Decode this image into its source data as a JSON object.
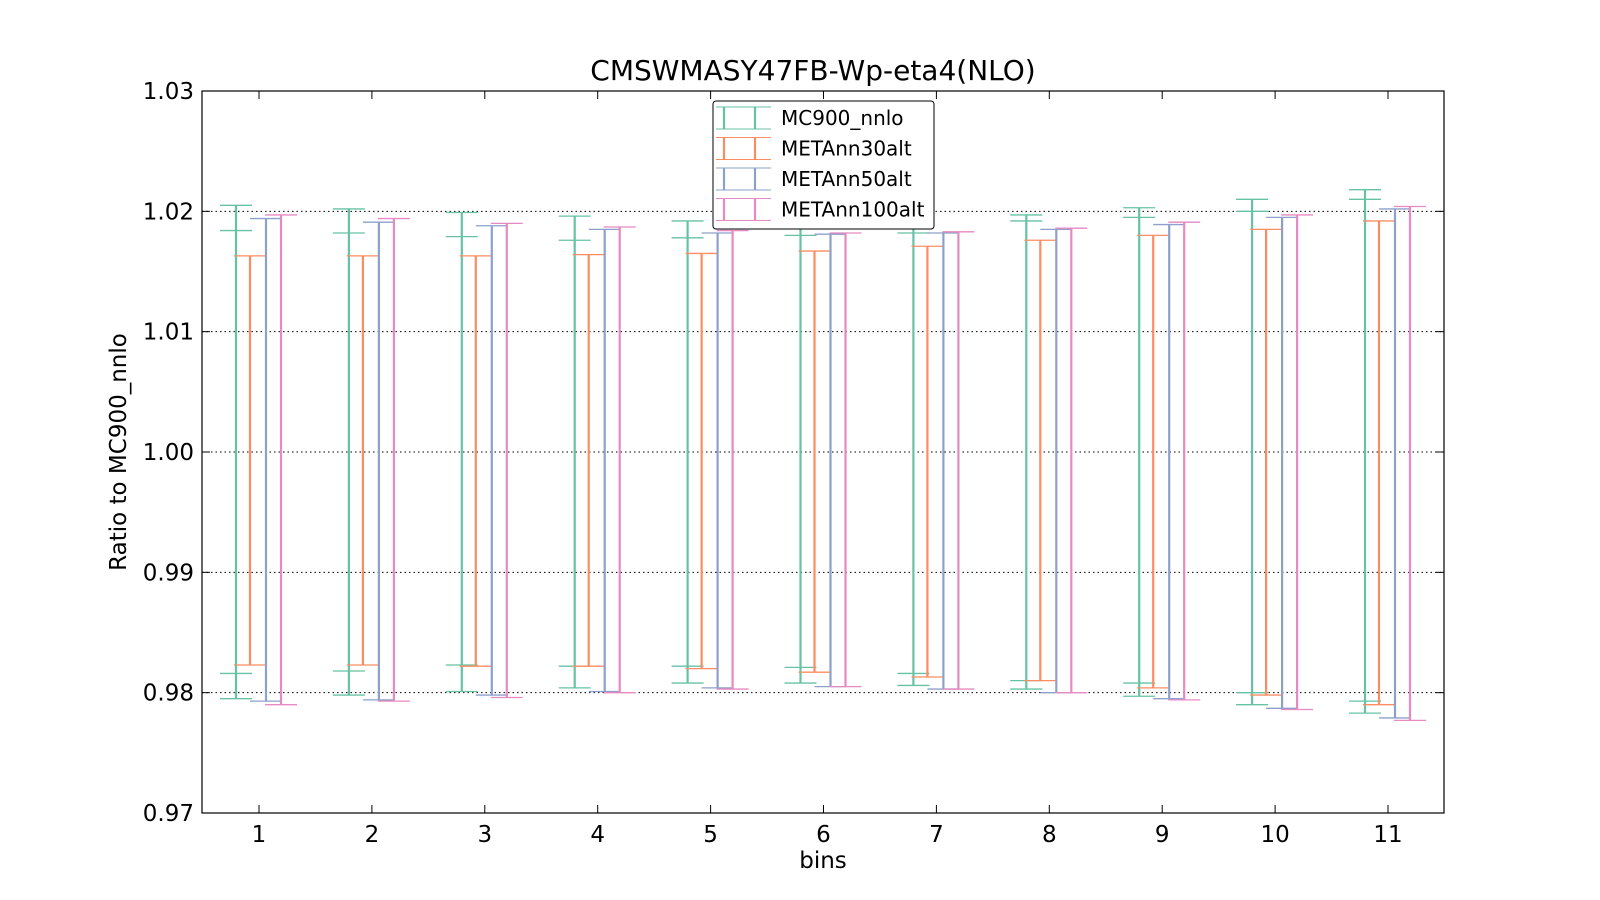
{
  "chart_data": {
    "type": "errorbar",
    "title": "CMSWMASY47FB-Wp-eta4(NLO)",
    "xlabel": "bins",
    "ylabel": "Ratio to MC900_nnlo",
    "ylim": [
      0.97,
      1.03
    ],
    "yticks": [
      "0.97",
      "0.98",
      "0.99",
      "1.00",
      "1.01",
      "1.02",
      "1.03"
    ],
    "categories": [
      "1",
      "2",
      "3",
      "4",
      "5",
      "6",
      "7",
      "8",
      "9",
      "10",
      "11"
    ],
    "grid": "horizontal-dotted",
    "legend_position": "top-center",
    "series": [
      {
        "name": "MC900_nnlo",
        "color": "#66c2a5",
        "high": [
          1.0205,
          1.0202,
          1.0199,
          1.0196,
          1.0192,
          1.0189,
          1.0188,
          1.0197,
          1.0203,
          1.021,
          1.0218
        ],
        "inner_high": [
          1.0184,
          1.0182,
          1.0179,
          1.0176,
          1.0178,
          1.018,
          1.0182,
          1.0192,
          1.0195,
          1.02,
          1.021
        ],
        "inner_low": [
          0.9816,
          0.9818,
          0.9823,
          0.9822,
          0.9822,
          0.9821,
          0.9816,
          0.981,
          0.9808,
          0.98,
          0.9793
        ],
        "low": [
          0.9795,
          0.9798,
          0.9801,
          0.9804,
          0.9808,
          0.9808,
          0.9806,
          0.9803,
          0.9797,
          0.979,
          0.9783
        ]
      },
      {
        "name": "METAnn30alt",
        "color": "#fc8d62",
        "high": [
          1.0163,
          1.0163,
          1.0163,
          1.0164,
          1.0165,
          1.0167,
          1.0171,
          1.0176,
          1.018,
          1.0185,
          1.0192
        ],
        "low": [
          0.9823,
          0.9823,
          0.9822,
          0.9822,
          0.982,
          0.9817,
          0.9813,
          0.981,
          0.9804,
          0.9798,
          0.979
        ]
      },
      {
        "name": "METAnn50alt",
        "color": "#8da0cb",
        "high": [
          1.0194,
          1.0191,
          1.0188,
          1.0185,
          1.0182,
          1.0181,
          1.0182,
          1.0185,
          1.0189,
          1.0195,
          1.0202
        ],
        "low": [
          0.9793,
          0.9794,
          0.9798,
          0.9801,
          0.9804,
          0.9805,
          0.9803,
          0.98,
          0.9795,
          0.9787,
          0.9779
        ]
      },
      {
        "name": "METAnn100alt",
        "color": "#e78ac3",
        "high": [
          1.0197,
          1.0194,
          1.019,
          1.0187,
          1.0184,
          1.0182,
          1.0183,
          1.0186,
          1.0191,
          1.0197,
          1.0204
        ],
        "low": [
          0.979,
          0.9793,
          0.9796,
          0.98,
          0.9803,
          0.9805,
          0.9803,
          0.98,
          0.9794,
          0.9786,
          0.9777
        ]
      }
    ]
  }
}
